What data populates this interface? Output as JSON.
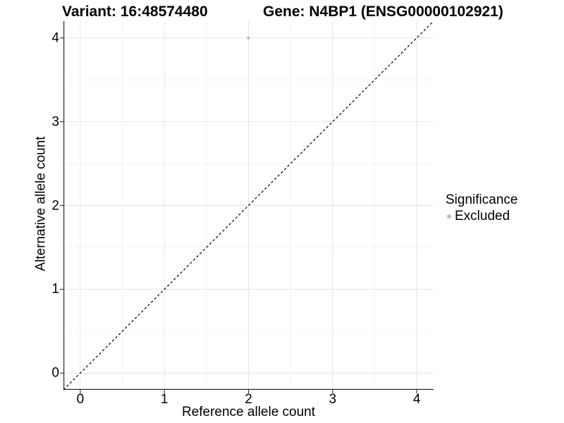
{
  "header": {
    "variant_title": "Variant: 16:48574480",
    "gene_title": "Gene: N4BP1 (ENSG00000102921)"
  },
  "chart_data": {
    "type": "scatter",
    "xlabel": "Reference allele count",
    "ylabel": "Alternative allele count",
    "xlim": [
      -0.2,
      4.2
    ],
    "ylim": [
      -0.2,
      4.2
    ],
    "xticks": [
      0,
      1,
      2,
      3,
      4
    ],
    "yticks": [
      0,
      1,
      2,
      3,
      4
    ],
    "grid": {
      "visible": true,
      "major": [
        0,
        1,
        2,
        3,
        4
      ],
      "minor": [
        0.5,
        1.5,
        2.5,
        3.5
      ]
    },
    "reference_line": {
      "shape": "identity",
      "style": "dashed",
      "from": [
        -0.2,
        -0.2
      ],
      "to": [
        4.2,
        4.2
      ],
      "color": "#000000"
    },
    "series": [
      {
        "name": "Excluded",
        "color": "#BDBDBD",
        "marker": "circle",
        "points": [
          {
            "x": 2,
            "y": 4
          }
        ]
      }
    ],
    "legend": {
      "title": "Significance",
      "position": "right",
      "items": [
        {
          "label": "Excluded",
          "color": "#BDBDBD"
        }
      ]
    },
    "colors": {
      "background": "#FFFFFF",
      "axis": "#2B2B2B",
      "grid_major": "#E6E6E6",
      "grid_minor": "#F1F1F1",
      "point": "#BDBDBD",
      "text": "#000000"
    }
  }
}
